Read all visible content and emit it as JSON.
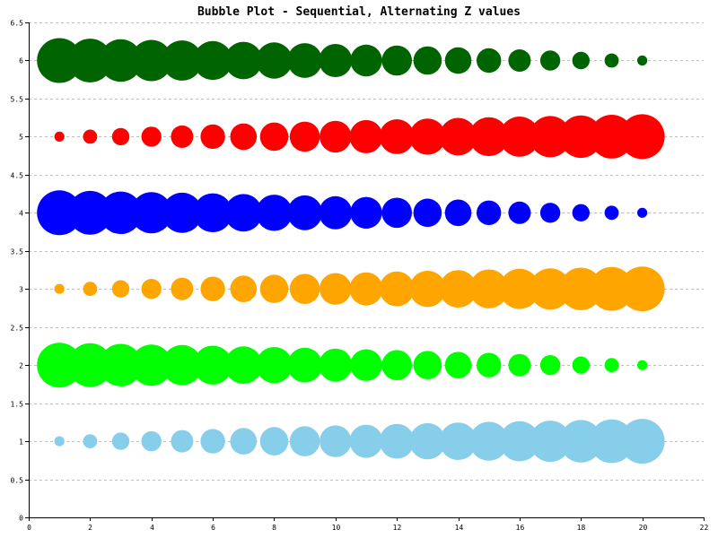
{
  "chart_data": {
    "type": "scatter",
    "title": "Bubble Plot - Sequential, Alternating Z values",
    "xlabel": "",
    "ylabel": "",
    "xlim": [
      0,
      22
    ],
    "ylim": [
      0,
      6.5
    ],
    "x_ticks": [
      0,
      2,
      4,
      6,
      8,
      10,
      12,
      14,
      16,
      18,
      20,
      22
    ],
    "y_ticks": [
      0,
      0.5,
      1,
      1.5,
      2,
      2.5,
      3,
      3.5,
      4,
      4.5,
      5,
      5.5,
      6,
      6.5
    ],
    "x_tick_labels": [
      "0",
      "2",
      "4",
      "6",
      "8",
      "10",
      "12",
      "14",
      "16",
      "18",
      "20",
      "22"
    ],
    "y_tick_labels": [
      "0",
      "0.5",
      "1",
      "1.5",
      "2",
      "2.5",
      "3",
      "3.5",
      "4",
      "4.5",
      "5",
      "5.5",
      "6",
      "6.5"
    ],
    "grid": "horizontal dashed",
    "legend": "none",
    "series": [
      {
        "color": "#87ceeb",
        "y": 1,
        "x": [
          1,
          2,
          3,
          4,
          5,
          6,
          7,
          8,
          9,
          10,
          11,
          12,
          13,
          14,
          15,
          16,
          17,
          18,
          19,
          20
        ],
        "z": [
          1,
          2,
          3,
          4,
          5,
          6,
          7,
          8,
          9,
          10,
          11,
          12,
          13,
          14,
          15,
          16,
          17,
          18,
          19,
          20
        ]
      },
      {
        "color": "#00ff00",
        "y": 2,
        "x": [
          1,
          2,
          3,
          4,
          5,
          6,
          7,
          8,
          9,
          10,
          11,
          12,
          13,
          14,
          15,
          16,
          17,
          18,
          19,
          20
        ],
        "z": [
          20,
          19,
          18,
          17,
          16,
          15,
          14,
          13,
          12,
          11,
          10,
          9,
          8,
          7,
          6,
          5,
          4,
          3,
          2,
          1
        ]
      },
      {
        "color": "#ffa500",
        "y": 3,
        "x": [
          1,
          2,
          3,
          4,
          5,
          6,
          7,
          8,
          9,
          10,
          11,
          12,
          13,
          14,
          15,
          16,
          17,
          18,
          19,
          20
        ],
        "z": [
          1,
          2,
          3,
          4,
          5,
          6,
          7,
          8,
          9,
          10,
          11,
          12,
          13,
          14,
          15,
          16,
          17,
          18,
          19,
          20
        ]
      },
      {
        "color": "#0000ff",
        "y": 4,
        "x": [
          1,
          2,
          3,
          4,
          5,
          6,
          7,
          8,
          9,
          10,
          11,
          12,
          13,
          14,
          15,
          16,
          17,
          18,
          19,
          20
        ],
        "z": [
          20,
          19,
          18,
          17,
          16,
          15,
          14,
          13,
          12,
          11,
          10,
          9,
          8,
          7,
          6,
          5,
          4,
          3,
          2,
          1
        ]
      },
      {
        "color": "#ff0000",
        "y": 5,
        "x": [
          1,
          2,
          3,
          4,
          5,
          6,
          7,
          8,
          9,
          10,
          11,
          12,
          13,
          14,
          15,
          16,
          17,
          18,
          19,
          20
        ],
        "z": [
          1,
          2,
          3,
          4,
          5,
          6,
          7,
          8,
          9,
          10,
          11,
          12,
          13,
          14,
          15,
          16,
          17,
          18,
          19,
          20
        ]
      },
      {
        "color": "#006400",
        "y": 6,
        "x": [
          1,
          2,
          3,
          4,
          5,
          6,
          7,
          8,
          9,
          10,
          11,
          12,
          13,
          14,
          15,
          16,
          17,
          18,
          19,
          20
        ],
        "z": [
          20,
          19,
          18,
          17,
          16,
          15,
          14,
          13,
          12,
          11,
          10,
          9,
          8,
          7,
          6,
          5,
          4,
          3,
          2,
          1
        ]
      }
    ]
  }
}
